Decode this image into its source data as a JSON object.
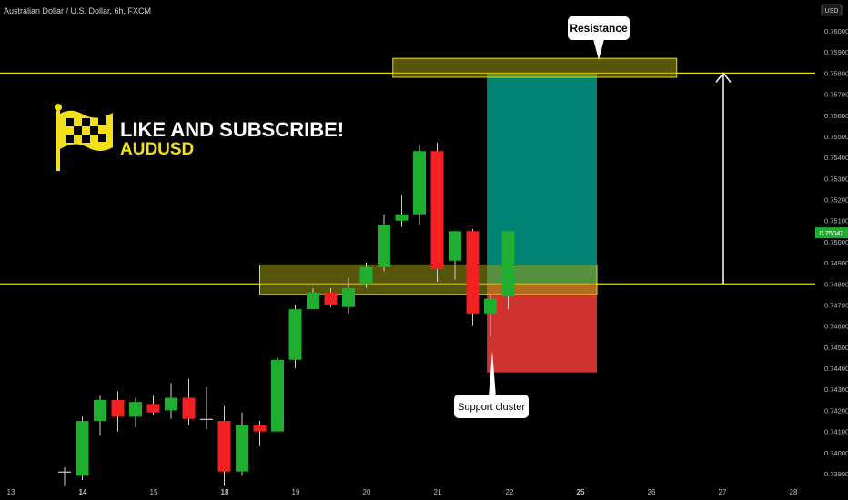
{
  "header": {
    "title": "Australian Dollar / U.S. Dollar, 6h, FXCM",
    "currency_badge": "USD"
  },
  "branding": {
    "headline": "LIKE AND SUBSCRIBE!",
    "symbol": "AUDUSD",
    "icon": "checkered-flag-icon",
    "color": "#f2e01a"
  },
  "annotations": {
    "resistance_label": "Resistance",
    "support_label": "Support cluster"
  },
  "price_tag": "0.75042",
  "colors": {
    "background": "#000000",
    "bull": "#1fae2f",
    "bear": "#f22020",
    "level_line": "#e8e000",
    "zone_fill": "#9c9a12",
    "target_fill": "#00897b",
    "stop_fill": "#e53935",
    "axis_text": "#bdbdbd"
  },
  "chart_data": {
    "type": "candlestick",
    "title": "Australian Dollar / U.S. Dollar, 6h, FXCM",
    "y_ticks": [
      "0.76000",
      "0.75900",
      "0.75800",
      "0.75700",
      "0.75600",
      "0.75500",
      "0.75400",
      "0.75300",
      "0.75200",
      "0.75100",
      "0.75000",
      "0.74900",
      "0.74800",
      "0.74700",
      "0.74600",
      "0.74500",
      "0.74400",
      "0.74300",
      "0.74200",
      "0.74100",
      "0.74000",
      "0.73900"
    ],
    "x_ticks": [
      "13",
      "14",
      "15",
      "18",
      "19",
      "20",
      "21",
      "22",
      "25",
      "26",
      "27",
      "28"
    ],
    "ylim": [
      0.7385,
      0.7605
    ],
    "grid": false,
    "candles": [
      {
        "open": 0.7391,
        "high": 0.7393,
        "low": 0.7384,
        "close": 0.7391,
        "dir": "flat"
      },
      {
        "open": 0.7389,
        "high": 0.7417,
        "low": 0.7387,
        "close": 0.7415,
        "dir": "up"
      },
      {
        "open": 0.7415,
        "high": 0.7427,
        "low": 0.7408,
        "close": 0.7425,
        "dir": "up"
      },
      {
        "open": 0.7425,
        "high": 0.7429,
        "low": 0.741,
        "close": 0.7417,
        "dir": "down"
      },
      {
        "open": 0.7417,
        "high": 0.7426,
        "low": 0.7412,
        "close": 0.7424,
        "dir": "up"
      },
      {
        "open": 0.7423,
        "high": 0.7427,
        "low": 0.7418,
        "close": 0.7419,
        "dir": "down"
      },
      {
        "open": 0.742,
        "high": 0.7433,
        "low": 0.7416,
        "close": 0.7426,
        "dir": "up"
      },
      {
        "open": 0.7426,
        "high": 0.7435,
        "low": 0.7413,
        "close": 0.7416,
        "dir": "down"
      },
      {
        "open": 0.7416,
        "high": 0.7431,
        "low": 0.7411,
        "close": 0.7416,
        "dir": "flat"
      },
      {
        "open": 0.7415,
        "high": 0.7422,
        "low": 0.7384,
        "close": 0.7391,
        "dir": "down"
      },
      {
        "open": 0.7391,
        "high": 0.7419,
        "low": 0.7389,
        "close": 0.7413,
        "dir": "up"
      },
      {
        "open": 0.7413,
        "high": 0.7415,
        "low": 0.7403,
        "close": 0.741,
        "dir": "down"
      },
      {
        "open": 0.741,
        "high": 0.7445,
        "low": 0.741,
        "close": 0.7444,
        "dir": "up"
      },
      {
        "open": 0.7444,
        "high": 0.747,
        "low": 0.744,
        "close": 0.7468,
        "dir": "up"
      },
      {
        "open": 0.7468,
        "high": 0.7478,
        "low": 0.7468,
        "close": 0.7476,
        "dir": "up"
      },
      {
        "open": 0.7476,
        "high": 0.7478,
        "low": 0.7469,
        "close": 0.747,
        "dir": "down"
      },
      {
        "open": 0.7469,
        "high": 0.7483,
        "low": 0.7466,
        "close": 0.7478,
        "dir": "up"
      },
      {
        "open": 0.748,
        "high": 0.749,
        "low": 0.7478,
        "close": 0.7488,
        "dir": "up"
      },
      {
        "open": 0.7488,
        "high": 0.7513,
        "low": 0.7486,
        "close": 0.7508,
        "dir": "up"
      },
      {
        "open": 0.751,
        "high": 0.7522,
        "low": 0.7507,
        "close": 0.7513,
        "dir": "up"
      },
      {
        "open": 0.7513,
        "high": 0.7546,
        "low": 0.7508,
        "close": 0.7543,
        "dir": "up"
      },
      {
        "open": 0.7543,
        "high": 0.7547,
        "low": 0.7481,
        "close": 0.7487,
        "dir": "down"
      },
      {
        "open": 0.7491,
        "high": 0.7505,
        "low": 0.7482,
        "close": 0.7505,
        "dir": "up"
      },
      {
        "open": 0.7505,
        "high": 0.7506,
        "low": 0.746,
        "close": 0.7466,
        "dir": "down"
      },
      {
        "open": 0.7466,
        "high": 0.7475,
        "low": 0.7455,
        "close": 0.7473,
        "dir": "up"
      },
      {
        "open": 0.7474,
        "high": 0.7505,
        "low": 0.7468,
        "close": 0.7505,
        "dir": "up"
      }
    ],
    "levels": [
      {
        "name": "resistance",
        "price": 0.758
      },
      {
        "name": "support",
        "price": 0.748
      }
    ],
    "zones": [
      {
        "name": "resistance-zone",
        "from_index": 18.5,
        "to_index": 34.5,
        "low": 0.7578,
        "high": 0.7587
      },
      {
        "name": "support-zone",
        "from_index": 11.0,
        "to_index": 30.0,
        "low": 0.7475,
        "high": 0.7489
      }
    ],
    "position": {
      "entry": 0.748,
      "target": 0.758,
      "stop": 0.7438,
      "from_index": 23.8,
      "to_index": 30.0
    }
  }
}
